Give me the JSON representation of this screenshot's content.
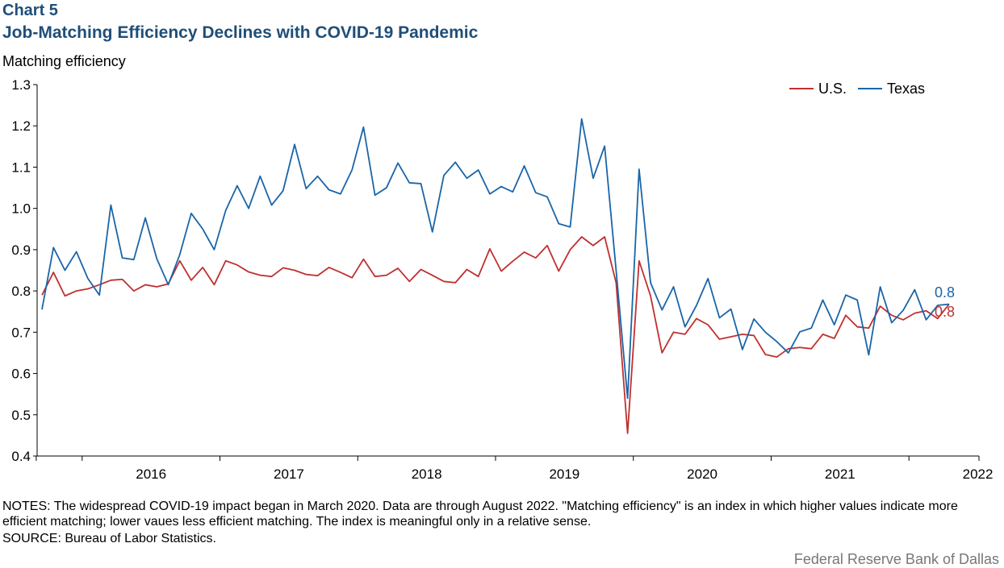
{
  "header": {
    "chart_number": "Chart 5",
    "title": "Job-Matching Efficiency Declines with COVID-19 Pandemic"
  },
  "notes": {
    "text": "NOTES: The widespread COVID-19 impact began in March 2020. Data are through August 2022. \"Matching efficiency\" is an index in which higher values indicate more efficient matching; lower vaues less efficient matching. The index is meaningful only in a relative sense.",
    "source": "SOURCE: Bureau of Labor Statistics."
  },
  "footer": {
    "credit": "Federal Reserve Bank of Dallas"
  },
  "chart_data": {
    "type": "line",
    "title": "Job-Matching Efficiency Declines with COVID-19 Pandemic",
    "ylabel": "Matching efficiency",
    "xlabel": "",
    "ylim": [
      0.4,
      1.3
    ],
    "yticks": [
      "0.4",
      "0.5",
      "0.6",
      "0.7",
      "0.8",
      "0.9",
      "1.0",
      "1.1",
      "1.2",
      "1.3"
    ],
    "x_tick_labels": [
      "2016",
      "2017",
      "2018",
      "2019",
      "2020",
      "2021",
      "2022"
    ],
    "x_start": "2015-09",
    "x_end": "2022-08",
    "legend_position": "top-right",
    "grid": false,
    "end_labels": {
      "us": "0.8",
      "texas": "0.8"
    },
    "series": [
      {
        "name": "U.S.",
        "color": "#c0302f",
        "values": [
          0.79,
          0.845,
          0.788,
          0.8,
          0.805,
          0.815,
          0.826,
          0.828,
          0.8,
          0.815,
          0.81,
          0.817,
          0.873,
          0.826,
          0.857,
          0.815,
          0.873,
          0.863,
          0.846,
          0.838,
          0.835,
          0.856,
          0.85,
          0.84,
          0.837,
          0.857,
          0.845,
          0.832,
          0.877,
          0.835,
          0.838,
          0.855,
          0.823,
          0.852,
          0.838,
          0.823,
          0.82,
          0.852,
          0.835,
          0.902,
          0.848,
          0.872,
          0.894,
          0.88,
          0.91,
          0.848,
          0.9,
          0.931,
          0.91,
          0.931,
          0.82,
          0.455,
          0.873,
          0.788,
          0.65,
          0.7,
          0.695,
          0.733,
          0.718,
          0.683,
          0.689,
          0.695,
          0.692,
          0.646,
          0.64,
          0.66,
          0.663,
          0.66,
          0.695,
          0.685,
          0.741,
          0.713,
          0.71,
          0.763,
          0.741,
          0.73,
          0.746,
          0.752,
          0.733,
          0.768
        ]
      },
      {
        "name": "Texas",
        "color": "#1a65a8",
        "values": [
          0.755,
          0.905,
          0.85,
          0.895,
          0.83,
          0.79,
          1.008,
          0.88,
          0.876,
          0.977,
          0.878,
          0.815,
          0.888,
          0.988,
          0.95,
          0.9,
          0.995,
          1.055,
          1.0,
          1.078,
          1.008,
          1.043,
          1.155,
          1.048,
          1.078,
          1.045,
          1.035,
          1.093,
          1.197,
          1.032,
          1.05,
          1.11,
          1.062,
          1.06,
          0.943,
          1.08,
          1.112,
          1.073,
          1.093,
          1.035,
          1.053,
          1.04,
          1.103,
          1.038,
          1.028,
          0.963,
          0.955,
          1.217,
          1.073,
          1.151,
          0.85,
          0.54,
          1.095,
          0.82,
          0.754,
          0.81,
          0.713,
          0.765,
          0.83,
          0.735,
          0.756,
          0.658,
          0.732,
          0.7,
          0.677,
          0.65,
          0.701,
          0.71,
          0.778,
          0.718,
          0.79,
          0.778,
          0.645,
          0.81,
          0.723,
          0.753,
          0.803,
          0.73,
          0.765,
          0.768
        ]
      }
    ]
  }
}
